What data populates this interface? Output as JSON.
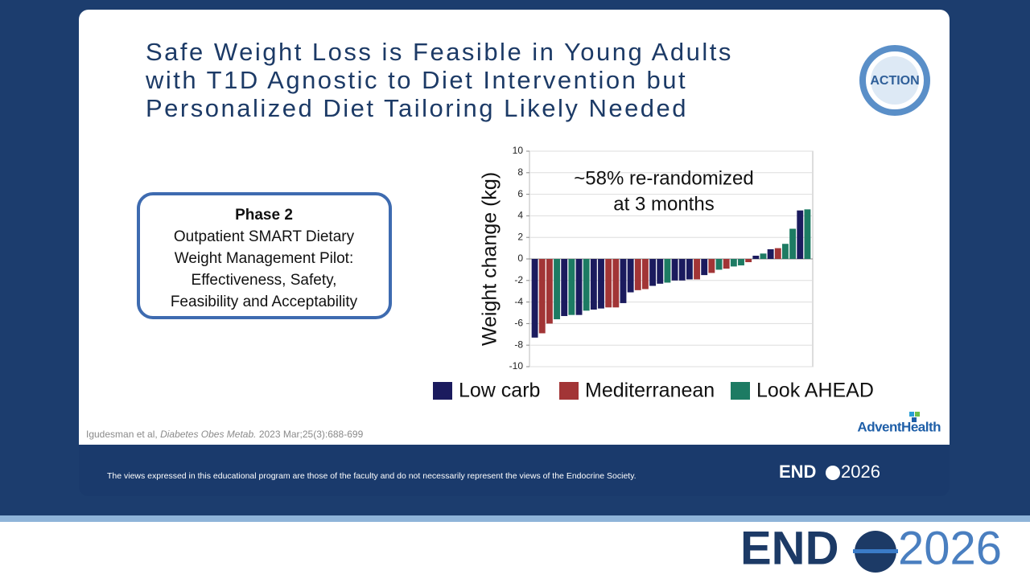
{
  "slide": {
    "title_lines": [
      "Safe Weight Loss is Feasible in Young Adults",
      "with T1D Agnostic to Diet Intervention but",
      "Personalized Diet Tailoring Likely Needed"
    ],
    "badge": "ACTION",
    "phase_box": {
      "heading": "Phase 2",
      "lines": [
        "Outpatient SMART Dietary",
        "Weight Management Pilot:",
        "Effectiveness, Safety,",
        "Feasibility and Acceptability"
      ]
    },
    "citation": {
      "authors": "Igudesman et al,",
      "journal": "Diabetes Obes Metab.",
      "details": "2023 Mar;25(3):688-699"
    },
    "sponsor": "AdventHealth",
    "disclaimer": "The views expressed in this educational program are those of the faculty and do not necessarily represent the views of the Endocrine Society.",
    "logo": {
      "left": "END",
      "right": "2026"
    }
  },
  "chart_data": {
    "type": "bar",
    "ylabel": "Weight change (kg)",
    "annotation": [
      "~58% re-randomized",
      "at 3 months"
    ],
    "ylim": [
      -10,
      10
    ],
    "yticks": [
      -10,
      -8,
      -6,
      -4,
      -2,
      0,
      2,
      4,
      6,
      8,
      10
    ],
    "grid": true,
    "series": [
      {
        "name": "Low carb",
        "color": "#1b1b5e",
        "values": [
          -7.3,
          null,
          null,
          null,
          -5.3,
          null,
          -5.2,
          null,
          -4.7,
          -4.6,
          null,
          null,
          -4.1,
          -3.1,
          null,
          null,
          -2.5,
          -2.3,
          null,
          -2.0,
          -2.0,
          -1.9,
          null,
          -1.5,
          null,
          null,
          null,
          null,
          null,
          null,
          0.3,
          null,
          0.9,
          null,
          null,
          null,
          4.5,
          null
        ]
      },
      {
        "name": "Mediterranean",
        "color": "#a23536",
        "values": [
          null,
          -6.9,
          -6.0,
          null,
          null,
          null,
          null,
          null,
          null,
          null,
          -4.5,
          -4.5,
          null,
          null,
          -2.9,
          -2.8,
          null,
          null,
          null,
          null,
          null,
          null,
          -1.9,
          null,
          -1.3,
          null,
          -0.9,
          null,
          null,
          -0.3,
          null,
          null,
          null,
          1.0,
          null,
          null,
          null,
          null
        ]
      },
      {
        "name": "Look AHEAD",
        "color": "#1d7b63",
        "values": [
          null,
          null,
          null,
          -5.6,
          null,
          -5.2,
          null,
          -4.8,
          null,
          null,
          null,
          null,
          null,
          null,
          null,
          null,
          null,
          null,
          -2.2,
          null,
          null,
          null,
          null,
          null,
          null,
          -1.0,
          null,
          -0.7,
          -0.6,
          null,
          null,
          0.5,
          null,
          null,
          1.4,
          2.8,
          null,
          4.6
        ]
      }
    ]
  }
}
